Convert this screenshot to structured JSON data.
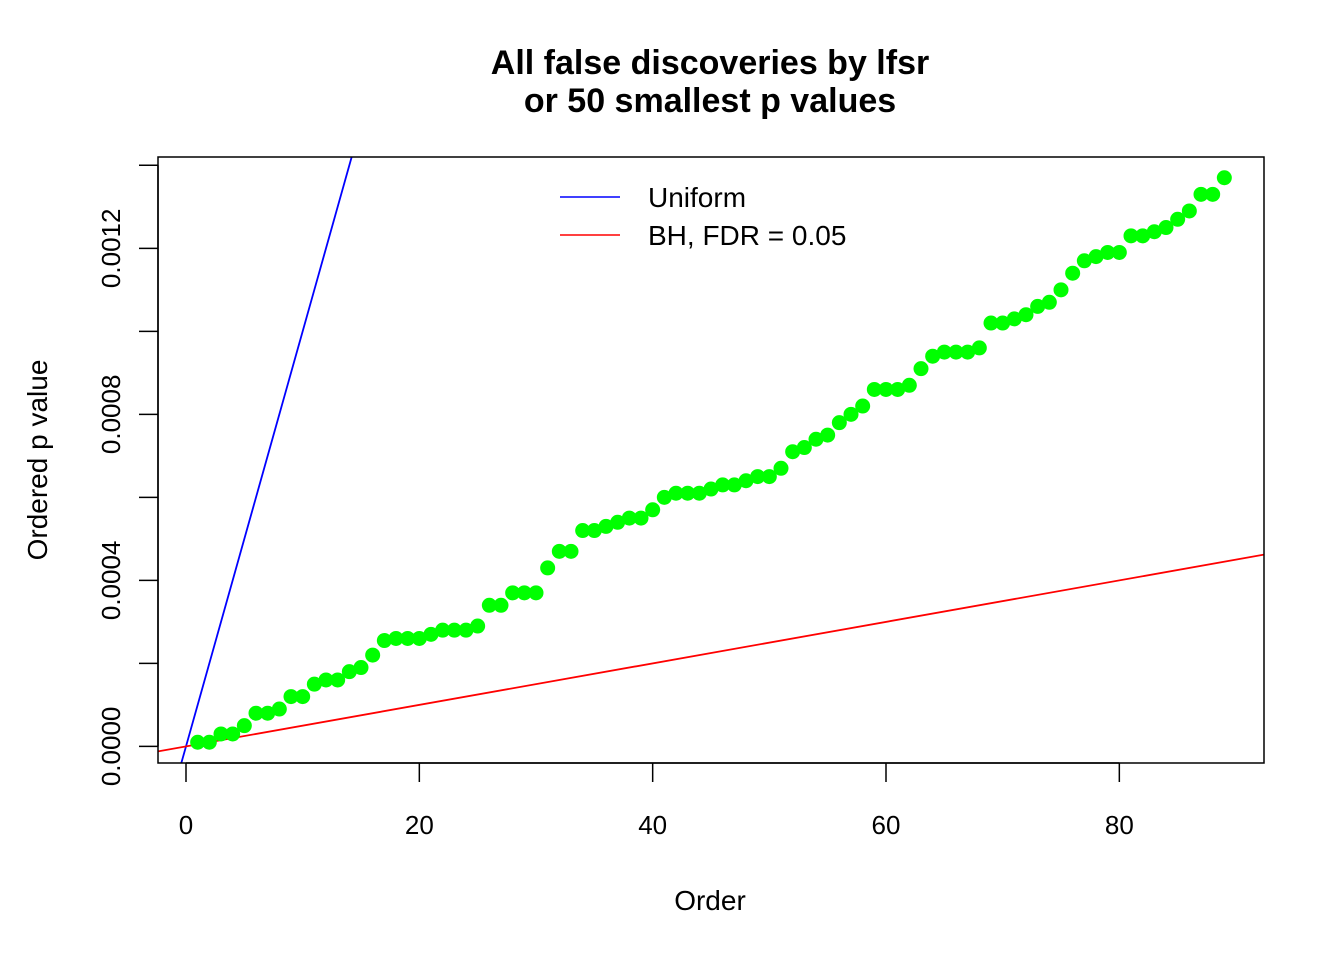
{
  "chart_data": {
    "type": "scatter",
    "title": [
      "All false discoveries by lfsr",
      "or 50 smallest p values"
    ],
    "xlabel": "Order",
    "ylabel": "Ordered p value",
    "xlim": [
      -2.4,
      92.4
    ],
    "ylim": [
      -4e-05,
      0.00142
    ],
    "x_ticks": [
      0,
      20,
      40,
      60,
      80
    ],
    "x_tick_labels": [
      "0",
      "20",
      "40",
      "60",
      "80"
    ],
    "y_ticks": [
      0,
      0.0002,
      0.0004,
      0.0006,
      0.0008,
      0.001,
      0.0012,
      0.0014
    ],
    "y_tick_labels": [
      "0.0000",
      "",
      "0.0004",
      "",
      "0.0008",
      "",
      "0.0012",
      ""
    ],
    "legend": {
      "position": "top",
      "entries": [
        {
          "label": "Uniform",
          "color": "#0000ff"
        },
        {
          "label": "BH, FDR = 0.05",
          "color": "#ff0000"
        }
      ]
    },
    "point_color": "#00ff00",
    "lines": [
      {
        "name": "Uniform",
        "color": "#0000ff",
        "intercept": 0,
        "slope": 0.0001
      },
      {
        "name": "BH, FDR = 0.05",
        "color": "#ff0000",
        "intercept": 0,
        "slope": 5e-06
      }
    ],
    "points": {
      "x": [
        1,
        2,
        3,
        4,
        5,
        6,
        7,
        8,
        9,
        10,
        11,
        12,
        13,
        14,
        15,
        16,
        17,
        18,
        19,
        20,
        21,
        22,
        23,
        24,
        25,
        26,
        27,
        28,
        29,
        30,
        31,
        32,
        33,
        34,
        35,
        36,
        37,
        38,
        39,
        40,
        41,
        42,
        43,
        44,
        45,
        46,
        47,
        48,
        49,
        50,
        51,
        52,
        53,
        54,
        55,
        56,
        57,
        58,
        59,
        60,
        61,
        62,
        63,
        64,
        65,
        66,
        67,
        68,
        69,
        70,
        71,
        72,
        73,
        74,
        75,
        76,
        77,
        78,
        79,
        80,
        81,
        82,
        83,
        84,
        85,
        86,
        87,
        88,
        89
      ],
      "y": [
        1e-05,
        1e-05,
        3e-05,
        3e-05,
        5e-05,
        8e-05,
        8e-05,
        9e-05,
        0.00012,
        0.00012,
        0.00015,
        0.00016,
        0.00016,
        0.00018,
        0.00019,
        0.00022,
        0.000255,
        0.00026,
        0.00026,
        0.00026,
        0.00027,
        0.00028,
        0.00028,
        0.00028,
        0.00029,
        0.00034,
        0.00034,
        0.00037,
        0.00037,
        0.00037,
        0.00043,
        0.00047,
        0.00047,
        0.00052,
        0.00052,
        0.00053,
        0.00054,
        0.00055,
        0.00055,
        0.00057,
        0.0006,
        0.00061,
        0.00061,
        0.00061,
        0.00062,
        0.00063,
        0.00063,
        0.00064,
        0.00065,
        0.00065,
        0.00067,
        0.00071,
        0.00072,
        0.00074,
        0.00075,
        0.00078,
        0.0008,
        0.00082,
        0.00086,
        0.00086,
        0.00086,
        0.00087,
        0.00091,
        0.00094,
        0.00095,
        0.00095,
        0.00095,
        0.00096,
        0.00102,
        0.00102,
        0.00103,
        0.00104,
        0.00106,
        0.00107,
        0.0011,
        0.00114,
        0.00117,
        0.00118,
        0.00119,
        0.00119,
        0.00123,
        0.00123,
        0.00124,
        0.00125,
        0.00127,
        0.00129,
        0.00133,
        0.00133,
        0.00137
      ]
    }
  }
}
